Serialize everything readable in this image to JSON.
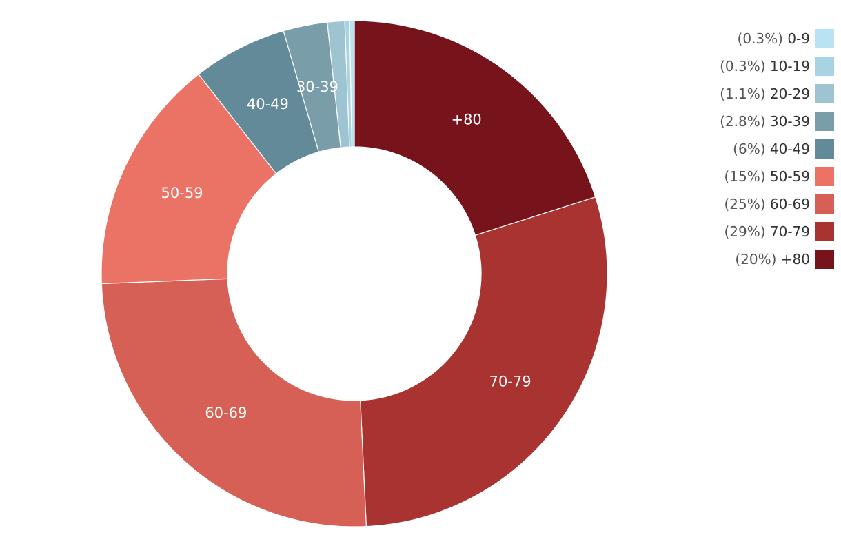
{
  "chart_data": {
    "type": "pie",
    "donut": true,
    "title": "",
    "legend_position": "top-right",
    "slices": [
      {
        "label": "+80",
        "percent_label": "(20%)",
        "value": 20,
        "color": "#77141b"
      },
      {
        "label": "70-79",
        "percent_label": "(29%)",
        "value": 29,
        "color": "#a83330"
      },
      {
        "label": "60-69",
        "percent_label": "(25%)",
        "value": 25,
        "color": "#d66055"
      },
      {
        "label": "50-59",
        "percent_label": "(15%)",
        "value": 15,
        "color": "#eb7365"
      },
      {
        "label": "40-49",
        "percent_label": "(6%)",
        "value": 6,
        "color": "#628a99"
      },
      {
        "label": "30-39",
        "percent_label": "(2.8%)",
        "value": 2.8,
        "color": "#7a9ea9"
      },
      {
        "label": "20-29",
        "percent_label": "(1.1%)",
        "value": 1.1,
        "color": "#9ec4d2"
      },
      {
        "label": "10-19",
        "percent_label": "(0.3%)",
        "value": 0.3,
        "color": "#a9d3e3"
      },
      {
        "label": "0-9",
        "percent_label": "(0.3%)",
        "value": 0.3,
        "color": "#b9e3f2"
      }
    ],
    "slice_labels_shown": [
      "+80",
      "70-79",
      "60-69",
      "50-59",
      "40-49",
      "30-39"
    ],
    "legend_order": [
      "0-9",
      "10-19",
      "20-29",
      "30-39",
      "40-49",
      "50-59",
      "60-69",
      "70-79",
      "+80"
    ]
  }
}
